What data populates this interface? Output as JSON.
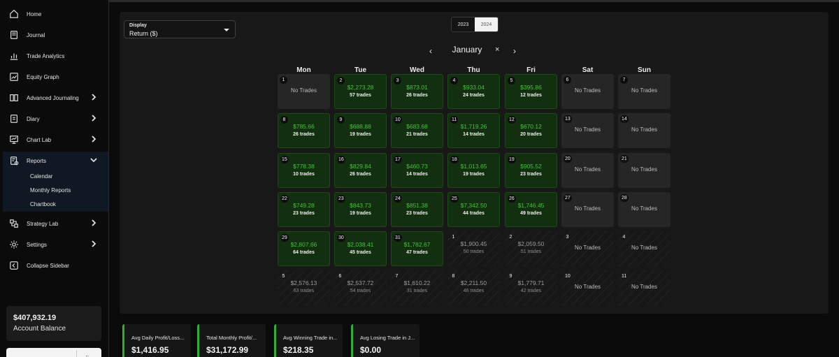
{
  "sidebar": {
    "items": [
      {
        "label": "Home",
        "icon": "home-icon"
      },
      {
        "label": "Journal",
        "icon": "book-icon"
      },
      {
        "label": "Trade Analytics",
        "icon": "bar-chart-icon"
      },
      {
        "label": "Equity Graph",
        "icon": "line-chart-icon"
      },
      {
        "label": "Advanced Journaling",
        "icon": "open-book-icon"
      },
      {
        "label": "Diary",
        "icon": "diary-icon"
      },
      {
        "label": "Chart Lab",
        "icon": "presentation-chart-icon"
      },
      {
        "label": "Reports",
        "icon": "report-icon"
      },
      {
        "label": "Strategy Lab",
        "icon": "strategy-icon"
      },
      {
        "label": "Settings",
        "icon": "gear-icon"
      },
      {
        "label": "Collapse Sidebar",
        "icon": "collapse-icon"
      }
    ],
    "reports_sub": [
      "Calendar",
      "Monthly Reports",
      "Chartbook"
    ],
    "balance": {
      "amount": "$407,932.19",
      "label": "Account Balance"
    }
  },
  "display": {
    "label": "Display",
    "value": "Return ($)"
  },
  "years": [
    "2023",
    "2024"
  ],
  "active_year": "2024",
  "month": {
    "name": "January",
    "prev": "‹",
    "next": "›",
    "clear": "×"
  },
  "weekdays": [
    "Mon",
    "Tue",
    "Wed",
    "Thu",
    "Fri",
    "Sat",
    "Sun"
  ],
  "no_trades_label": "No Trades",
  "weeks": [
    [
      {
        "day": "1",
        "type": "none"
      },
      {
        "day": "2",
        "type": "win",
        "amount": "$2,273.28",
        "trades": "57 trades"
      },
      {
        "day": "3",
        "type": "win",
        "amount": "$873.01",
        "trades": "26 trades"
      },
      {
        "day": "4",
        "type": "win",
        "amount": "$933.04",
        "trades": "24 trades"
      },
      {
        "day": "5",
        "type": "win",
        "amount": "$395.86",
        "trades": "12 trades"
      },
      {
        "day": "6",
        "type": "none"
      },
      {
        "day": "7",
        "type": "none"
      }
    ],
    [
      {
        "day": "8",
        "type": "win",
        "amount": "$785.66",
        "trades": "26 trades"
      },
      {
        "day": "9",
        "type": "win",
        "amount": "$688.88",
        "trades": "19 trades"
      },
      {
        "day": "10",
        "type": "win",
        "amount": "$683.68",
        "trades": "21 trades"
      },
      {
        "day": "11",
        "type": "win",
        "amount": "$1,719.26",
        "trades": "14 trades"
      },
      {
        "day": "12",
        "type": "win",
        "amount": "$670.12",
        "trades": "20 trades"
      },
      {
        "day": "13",
        "type": "none"
      },
      {
        "day": "14",
        "type": "none"
      }
    ],
    [
      {
        "day": "15",
        "type": "win",
        "amount": "$778.38",
        "trades": "10 trades"
      },
      {
        "day": "16",
        "type": "win",
        "amount": "$829.84",
        "trades": "26 trades"
      },
      {
        "day": "17",
        "type": "win",
        "amount": "$460.73",
        "trades": "14 trades"
      },
      {
        "day": "18",
        "type": "win",
        "amount": "$1,013.65",
        "trades": "19 trades"
      },
      {
        "day": "19",
        "type": "win",
        "amount": "$905.52",
        "trades": "23 trades"
      },
      {
        "day": "20",
        "type": "none"
      },
      {
        "day": "21",
        "type": "none"
      }
    ],
    [
      {
        "day": "22",
        "type": "win",
        "amount": "$749.28",
        "trades": "23 trades"
      },
      {
        "day": "23",
        "type": "win",
        "amount": "$843.73",
        "trades": "19 trades"
      },
      {
        "day": "24",
        "type": "win",
        "amount": "$851.38",
        "trades": "23 trades"
      },
      {
        "day": "25",
        "type": "win",
        "amount": "$7,342.50",
        "trades": "44 trades"
      },
      {
        "day": "26",
        "type": "win",
        "amount": "$1,746.45",
        "trades": "49 trades"
      },
      {
        "day": "27",
        "type": "none"
      },
      {
        "day": "28",
        "type": "none"
      }
    ],
    [
      {
        "day": "29",
        "type": "win",
        "amount": "$2,807.66",
        "trades": "64 trades"
      },
      {
        "day": "30",
        "type": "win",
        "amount": "$2,038.41",
        "trades": "45 trades"
      },
      {
        "day": "31",
        "type": "win",
        "amount": "$1,782.67",
        "trades": "47 trades"
      },
      {
        "day": "1",
        "type": "ghost",
        "amount": "$1,900.45",
        "trades": "50 trades"
      },
      {
        "day": "2",
        "type": "ghost",
        "amount": "$2,059.50",
        "trades": "51 trades"
      },
      {
        "day": "3",
        "type": "ghost-none"
      },
      {
        "day": "4",
        "type": "ghost-none"
      }
    ],
    [
      {
        "day": "5",
        "type": "ghost",
        "amount": "$2,576.13",
        "trades": "63 trades"
      },
      {
        "day": "6",
        "type": "ghost",
        "amount": "$2,537.72",
        "trades": "54 trades"
      },
      {
        "day": "7",
        "type": "ghost",
        "amount": "$1,610.22",
        "trades": "31 trades"
      },
      {
        "day": "8",
        "type": "ghost",
        "amount": "$2,211.50",
        "trades": "46 trades"
      },
      {
        "day": "9",
        "type": "ghost",
        "amount": "$1,779.71",
        "trades": "42 trades"
      },
      {
        "day": "10",
        "type": "ghost-none"
      },
      {
        "day": "11",
        "type": "ghost-none"
      }
    ]
  ],
  "stats": [
    {
      "label": "Avg Daily Profit/Loss...",
      "value": "$1,416.95"
    },
    {
      "label": "Total Monthly Profit/...",
      "value": "$31,172.99"
    },
    {
      "label": "Avg Winning Trade in...",
      "value": "$218.35"
    },
    {
      "label": "Avg Losing Trade in J...",
      "value": "$0.00"
    }
  ],
  "colors": {
    "win_bg": "#12300f",
    "win_text": "#43c23a",
    "accent": "#2fae3b",
    "background": "#0b0b0b"
  }
}
